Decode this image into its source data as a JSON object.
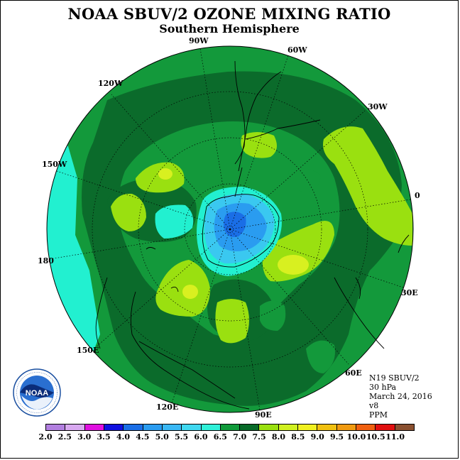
{
  "title": "NOAA SBUV/2 OZONE MIXING RATIO",
  "subtitle": "Southern Hemisphere",
  "longitude_labels": {
    "lon_90W": "90W",
    "lon_60W": "60W",
    "lon_30W": "30W",
    "lon_120W": "120W",
    "lon_150W": "150W",
    "lon_0": "0",
    "lon_180": "180",
    "lon_30E": "30E",
    "lon_150E": "150E",
    "lon_60E": "60E",
    "lon_120E": "120E",
    "lon_90E": "90E"
  },
  "info": {
    "satellite": "N19 SBUV/2",
    "level": "30 hPa",
    "date": "March 24, 2016",
    "version": "v8",
    "units": "PPM"
  },
  "logo": {
    "text": "NOAA",
    "ring_text": "NATIONAL OCEANIC AND ATMOSPHERIC ADMINISTRATION · U.S. DEPARTMENT OF COMMERCE"
  },
  "colorbar": {
    "ticks": [
      "2.0",
      "2.5",
      "3.0",
      "3.5",
      "4.0",
      "4.5",
      "5.0",
      "5.5",
      "6.0",
      "6.5",
      "7.0",
      "7.5",
      "8.0",
      "8.5",
      "9.0",
      "9.5",
      "10.0",
      "10.5",
      "11.0"
    ],
    "colors": [
      "#b27fe0",
      "#d8a8f0",
      "#e010e0",
      "#1010e0",
      "#1a6ee6",
      "#2a9cf0",
      "#3ab8f5",
      "#40d8f0",
      "#30f0d8",
      "#109a3a",
      "#086a28",
      "#9ae010",
      "#d0f020",
      "#f0f020",
      "#f0c010",
      "#f09a10",
      "#f06010",
      "#e01010",
      "#8a5030"
    ]
  },
  "map_colors": {
    "dark_green": "#0b6b2b",
    "mid_green": "#13993b",
    "cyan_green": "#22f0d0",
    "light_blue": "#3ac8f0",
    "mid_blue": "#2a9cf0",
    "blue": "#1a6ee6",
    "lime": "#9ae010",
    "yellow_green": "#d8f020"
  }
}
